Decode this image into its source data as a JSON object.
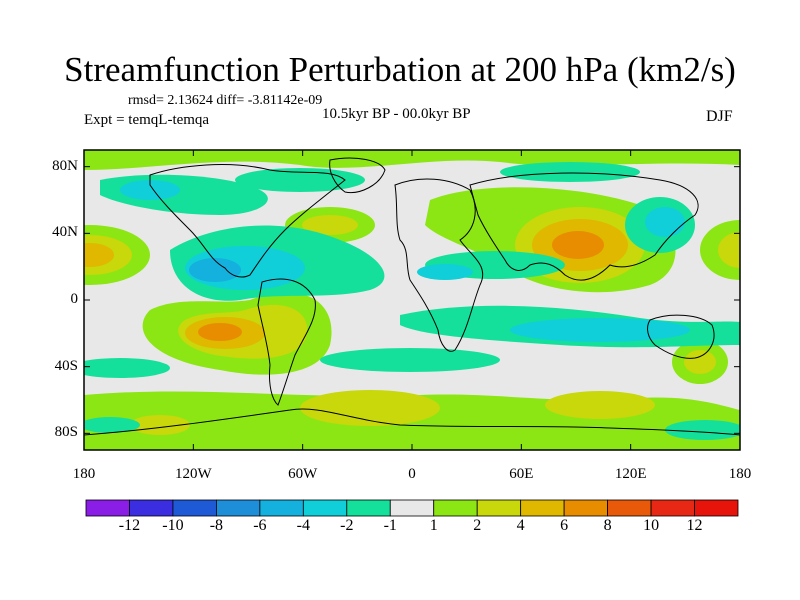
{
  "title": "Streamfunction Perturbation at 200 hPa (km2/s)",
  "stats_line": "rmsd= 2.13624 diff= -3.81142e-09",
  "period": "10.5kyr BP - 00.0kyr BP",
  "experiment": "Expt = temqL-temqa",
  "season": "DJF",
  "map": {
    "lat_labels": [
      "80N",
      "40N",
      "0",
      "40S",
      "80S"
    ],
    "lon_labels": [
      "180",
      "120W",
      "60W",
      "0",
      "60E",
      "120E",
      "180"
    ],
    "lat_range": [
      -90,
      90
    ],
    "lon_range": [
      -180,
      180
    ]
  },
  "colorbar": {
    "labels": [
      "-12",
      "-10",
      "-8",
      "-6",
      "-4",
      "-2",
      "-1",
      "1",
      "2",
      "4",
      "6",
      "8",
      "10",
      "12"
    ],
    "colors": [
      "#8a1ee6",
      "#3a2ee0",
      "#1e5ad6",
      "#1e8ed8",
      "#14b0de",
      "#10cfd8",
      "#14e09c",
      "#e8e8e8",
      "#8ce614",
      "#c8d80a",
      "#e0b800",
      "#e88c00",
      "#e85a0a",
      "#e62814",
      "#e6140a"
    ]
  },
  "colors": {
    "background_field": "#e8e8e8",
    "coast": "#000000"
  }
}
